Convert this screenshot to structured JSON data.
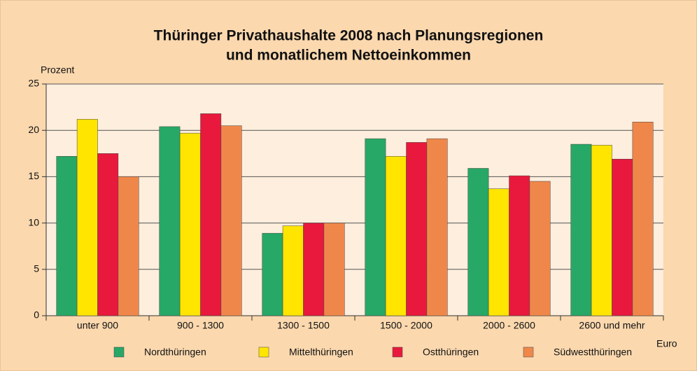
{
  "chart_data": {
    "type": "bar",
    "title": [
      "Thüringer Privathaushalte 2008 nach Planungsregionen",
      "und monatlichem Nettoeinkommen"
    ],
    "y_label": "Prozent",
    "x_label": "Euro",
    "categories": [
      "unter 900",
      "900 - 1300",
      "1300 - 1500",
      "1500 - 2000",
      "2000 - 2600",
      "2600 und mehr"
    ],
    "series": [
      {
        "name": "Nordthüringen",
        "color": "#27a866",
        "values": [
          17.2,
          20.4,
          8.9,
          19.1,
          15.9,
          18.5
        ]
      },
      {
        "name": "Mittelthüringen",
        "color": "#ffe500",
        "values": [
          21.2,
          19.7,
          9.7,
          17.2,
          13.7,
          18.4
        ]
      },
      {
        "name": "Ostthüringen",
        "color": "#e8193c",
        "values": [
          17.5,
          21.8,
          10.0,
          18.7,
          15.1,
          16.9
        ]
      },
      {
        "name": "Südwestthüringen",
        "color": "#f0874a",
        "values": [
          15.0,
          20.5,
          10.0,
          19.1,
          14.5,
          20.9
        ]
      }
    ],
    "ylim": [
      0,
      25
    ],
    "yticks": [
      0,
      5,
      10,
      15,
      20,
      25
    ],
    "grid": true,
    "legend": "bottom"
  }
}
